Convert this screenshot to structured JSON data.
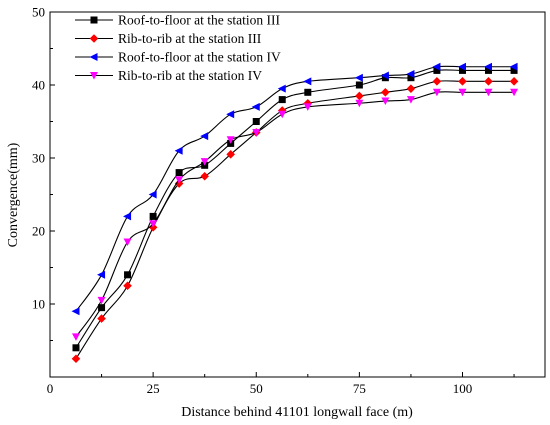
{
  "chart_data": {
    "type": "line",
    "xlabel": "Distance behind 41101 longwall face (m)",
    "ylabel": "Convergence(mm)",
    "xlim": [
      0,
      120
    ],
    "ylim": [
      0,
      50
    ],
    "xticks": [
      0,
      25,
      50,
      75,
      100
    ],
    "yticks": [
      10,
      20,
      30,
      40,
      50
    ],
    "grid": false,
    "legend_position": "top-left",
    "series": [
      {
        "name": "Roof-to-floor at the station III",
        "color": "#000000",
        "marker": "square",
        "x": [
          6.3,
          12.5,
          18.8,
          25.0,
          31.3,
          37.5,
          43.8,
          50.0,
          56.3,
          62.5,
          75.0,
          81.3,
          87.5,
          93.8,
          100.0,
          106.3,
          112.5
        ],
        "y": [
          4.0,
          9.5,
          14.0,
          22.0,
          28.0,
          29.0,
          32.0,
          35.0,
          38.0,
          39.0,
          40.0,
          41.0,
          41.0,
          42.0,
          42.0,
          42.0,
          42.0
        ]
      },
      {
        "name": "Rib-to-rib at the station III",
        "color": "#ff0000",
        "marker": "diamond",
        "x": [
          6.3,
          12.5,
          18.8,
          25.0,
          31.3,
          37.5,
          43.8,
          50.0,
          56.3,
          62.5,
          75.0,
          81.3,
          87.5,
          93.8,
          100.0,
          106.3,
          112.5
        ],
        "y": [
          2.5,
          8.0,
          12.5,
          20.5,
          26.5,
          27.5,
          30.5,
          33.5,
          36.5,
          37.5,
          38.5,
          39.0,
          39.5,
          40.5,
          40.5,
          40.5,
          40.5
        ]
      },
      {
        "name": "Roof-to-floor at the station IV",
        "color": "#0000ff",
        "marker": "triangle-left",
        "x": [
          6.3,
          12.5,
          18.8,
          25.0,
          31.3,
          37.5,
          43.8,
          50.0,
          56.3,
          62.5,
          75.0,
          81.3,
          87.5,
          93.8,
          100.0,
          106.3,
          112.5
        ],
        "y": [
          9.0,
          14.0,
          22.0,
          25.0,
          31.0,
          33.0,
          36.0,
          37.0,
          39.5,
          40.5,
          41.0,
          41.3,
          41.5,
          42.5,
          42.5,
          42.5,
          42.5
        ]
      },
      {
        "name": "Rib-to-rib at the station IV",
        "color": "#ff00ff",
        "marker": "triangle-down",
        "x": [
          6.3,
          12.5,
          18.8,
          25.0,
          31.3,
          37.5,
          43.8,
          50.0,
          56.3,
          62.5,
          75.0,
          81.3,
          87.5,
          93.8,
          100.0,
          106.3,
          112.5
        ],
        "y": [
          5.5,
          10.5,
          18.5,
          21.0,
          27.0,
          29.5,
          32.5,
          33.5,
          36.0,
          37.0,
          37.5,
          37.8,
          38.0,
          39.0,
          39.0,
          39.0,
          39.0
        ]
      }
    ]
  }
}
